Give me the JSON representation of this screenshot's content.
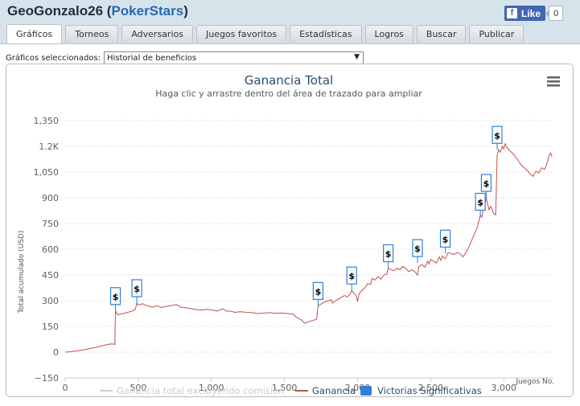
{
  "header": {
    "user": "GeoGonzalo26",
    "site": "PokerStars",
    "fb_like": "Like",
    "fb_count": "0"
  },
  "tabs": [
    {
      "label": "Gráficos",
      "active": true
    },
    {
      "label": "Torneos"
    },
    {
      "label": "Adversarios"
    },
    {
      "label": "Juegos favoritos"
    },
    {
      "label": "Estadísticas"
    },
    {
      "label": "Logros"
    },
    {
      "label": "Buscar"
    },
    {
      "label": "Publicar"
    }
  ],
  "selector": {
    "label": "Gráficos seleccionados:",
    "value": "Historial de beneficios"
  },
  "chart_data": {
    "type": "line",
    "title": "Ganancia Total",
    "subtitle": "Haga clic y arrastre dentro del área de trazado para ampliar",
    "ylabel": "Total acumulado (USD)",
    "xlabel": "Juegos No.",
    "ylim": [
      -150,
      1350
    ],
    "xlim": [
      0,
      3340
    ],
    "yticks": [
      {
        "v": 1350,
        "label": "1,350"
      },
      {
        "v": 1200,
        "label": "1.2K"
      },
      {
        "v": 1050,
        "label": "1,050"
      },
      {
        "v": 900,
        "label": "900"
      },
      {
        "v": 750,
        "label": "750"
      },
      {
        "v": 600,
        "label": "600"
      },
      {
        "v": 450,
        "label": "450"
      },
      {
        "v": 300,
        "label": "300"
      },
      {
        "v": 150,
        "label": "150"
      },
      {
        "v": 0,
        "label": "0"
      },
      {
        "v": -150,
        "label": "−150"
      }
    ],
    "xticks": [
      {
        "v": 0,
        "label": "0"
      },
      {
        "v": 500,
        "label": "500"
      },
      {
        "v": 1000,
        "label": "1,000"
      },
      {
        "v": 1500,
        "label": "1,500"
      },
      {
        "v": 2000,
        "label": "2,000"
      },
      {
        "v": 2500,
        "label": "2,500"
      },
      {
        "v": 3000,
        "label": "3,000"
      }
    ],
    "grid": true,
    "legend_position": "bottom",
    "colors": {
      "ganancia": "#c0504d",
      "rake": "#cccccc",
      "victorias": "#2f7ed8",
      "title": "#274b6d"
    },
    "legend": [
      {
        "name": "Ganancia total excluyendo comisión",
        "color": "#cccccc",
        "kind": "line",
        "disabled": true
      },
      {
        "name": "Ganancia",
        "color": "#c0504d",
        "kind": "line"
      },
      {
        "name": "Victorias Significativas",
        "color": "#2f7ed8",
        "kind": "box"
      }
    ],
    "series": [
      {
        "name": "Ganancia",
        "points": [
          [
            0,
            0
          ],
          [
            30,
            2
          ],
          [
            60,
            5
          ],
          [
            100,
            10
          ],
          [
            140,
            15
          ],
          [
            180,
            22
          ],
          [
            220,
            30
          ],
          [
            260,
            38
          ],
          [
            290,
            45
          ],
          [
            320,
            48
          ],
          [
            340,
            45
          ],
          [
            344,
            240
          ],
          [
            360,
            218
          ],
          [
            380,
            222
          ],
          [
            400,
            226
          ],
          [
            420,
            230
          ],
          [
            440,
            235
          ],
          [
            460,
            240
          ],
          [
            480,
            250
          ],
          [
            490,
            286
          ],
          [
            500,
            275
          ],
          [
            530,
            282
          ],
          [
            560,
            270
          ],
          [
            600,
            262
          ],
          [
            630,
            270
          ],
          [
            660,
            260
          ],
          [
            700,
            268
          ],
          [
            730,
            272
          ],
          [
            760,
            278
          ],
          [
            790,
            262
          ],
          [
            830,
            258
          ],
          [
            870,
            252
          ],
          [
            900,
            248
          ],
          [
            930,
            245
          ],
          [
            970,
            250
          ],
          [
            1000,
            246
          ],
          [
            1040,
            240
          ],
          [
            1080,
            252
          ],
          [
            1100,
            240
          ],
          [
            1140,
            238
          ],
          [
            1160,
            232
          ],
          [
            1200,
            236
          ],
          [
            1240,
            232
          ],
          [
            1280,
            230
          ],
          [
            1320,
            225
          ],
          [
            1360,
            228
          ],
          [
            1400,
            230
          ],
          [
            1440,
            226
          ],
          [
            1480,
            228
          ],
          [
            1520,
            225
          ],
          [
            1560,
            222
          ],
          [
            1580,
            205
          ],
          [
            1600,
            195
          ],
          [
            1620,
            185
          ],
          [
            1640,
            168
          ],
          [
            1660,
            175
          ],
          [
            1680,
            182
          ],
          [
            1700,
            186
          ],
          [
            1720,
            192
          ],
          [
            1730,
            270
          ],
          [
            1750,
            280
          ],
          [
            1780,
            295
          ],
          [
            1800,
            300
          ],
          [
            1820,
            305
          ],
          [
            1830,
            286
          ],
          [
            1850,
            300
          ],
          [
            1870,
            310
          ],
          [
            1890,
            320
          ],
          [
            1910,
            330
          ],
          [
            1930,
            322
          ],
          [
            1950,
            340
          ],
          [
            1960,
            360
          ],
          [
            1975,
            345
          ],
          [
            1990,
            330
          ],
          [
            2000,
            295
          ],
          [
            2010,
            340
          ],
          [
            2030,
            360
          ],
          [
            2050,
            375
          ],
          [
            2070,
            400
          ],
          [
            2090,
            395
          ],
          [
            2100,
            430
          ],
          [
            2120,
            420
          ],
          [
            2140,
            440
          ],
          [
            2160,
            425
          ],
          [
            2180,
            450
          ],
          [
            2200,
            455
          ],
          [
            2210,
            490
          ],
          [
            2230,
            480
          ],
          [
            2250,
            475
          ],
          [
            2270,
            490
          ],
          [
            2290,
            480
          ],
          [
            2310,
            500
          ],
          [
            2330,
            488
          ],
          [
            2350,
            470
          ],
          [
            2370,
            480
          ],
          [
            2390,
            470
          ],
          [
            2410,
            450
          ],
          [
            2420,
            500
          ],
          [
            2440,
            510
          ],
          [
            2460,
            495
          ],
          [
            2480,
            530
          ],
          [
            2490,
            515
          ],
          [
            2500,
            540
          ],
          [
            2520,
            530
          ],
          [
            2540,
            520
          ],
          [
            2560,
            555
          ],
          [
            2570,
            535
          ],
          [
            2580,
            560
          ],
          [
            2600,
            545
          ],
          [
            2620,
            580
          ],
          [
            2640,
            575
          ],
          [
            2660,
            570
          ],
          [
            2680,
            580
          ],
          [
            2700,
            575
          ],
          [
            2720,
            555
          ],
          [
            2740,
            580
          ],
          [
            2760,
            610
          ],
          [
            2780,
            650
          ],
          [
            2800,
            690
          ],
          [
            2820,
            730
          ],
          [
            2840,
            800
          ],
          [
            2850,
            785
          ],
          [
            2860,
            840
          ],
          [
            2870,
            855
          ],
          [
            2880,
            900
          ],
          [
            2890,
            860
          ],
          [
            2900,
            830
          ],
          [
            2910,
            850
          ],
          [
            2930,
            810
          ],
          [
            2945,
            800
          ],
          [
            2955,
            1150
          ],
          [
            2965,
            1180
          ],
          [
            2975,
            1165
          ],
          [
            2990,
            1200
          ],
          [
            3000,
            1185
          ],
          [
            3010,
            1215
          ],
          [
            3020,
            1195
          ],
          [
            3040,
            1175
          ],
          [
            3060,
            1160
          ],
          [
            3080,
            1140
          ],
          [
            3100,
            1115
          ],
          [
            3120,
            1090
          ],
          [
            3140,
            1075
          ],
          [
            3160,
            1060
          ],
          [
            3180,
            1040
          ],
          [
            3200,
            1025
          ],
          [
            3220,
            1055
          ],
          [
            3240,
            1045
          ],
          [
            3260,
            1075
          ],
          [
            3280,
            1065
          ],
          [
            3300,
            1110
          ],
          [
            3310,
            1150
          ],
          [
            3320,
            1160
          ],
          [
            3330,
            1140
          ]
        ]
      }
    ],
    "flags": [
      {
        "label": "$",
        "x": 344,
        "y": 240
      },
      {
        "label": "$",
        "x": 490,
        "y": 286
      },
      {
        "label": "$",
        "x": 1730,
        "y": 270
      },
      {
        "label": "$",
        "x": 1960,
        "y": 360
      },
      {
        "label": "$",
        "x": 2210,
        "y": 490
      },
      {
        "label": "$",
        "x": 2410,
        "y": 520
      },
      {
        "label": "$",
        "x": 2600,
        "y": 575
      },
      {
        "label": "$",
        "x": 2840,
        "y": 790
      },
      {
        "label": "$",
        "x": 2880,
        "y": 900
      },
      {
        "label": "$",
        "x": 2955,
        "y": 1180
      }
    ]
  }
}
